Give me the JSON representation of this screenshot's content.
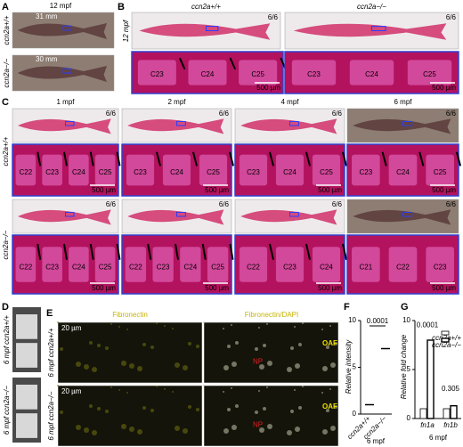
{
  "A": {
    "label": "A",
    "title": "12 mpf",
    "genotypes": [
      "ccn2a+/+",
      "ccn2a−/−"
    ],
    "lengths": [
      "31 mm",
      "30 mm"
    ]
  },
  "B": {
    "label": "B",
    "stage": "12 mpf",
    "columns": [
      {
        "genotype": "ccn2a+/+",
        "count": "6/6",
        "vertebrae": [
          "C23",
          "C24",
          "C25"
        ],
        "scale": "500 µm"
      },
      {
        "genotype": "ccn2a−/−",
        "count": "6/6",
        "vertebrae": [
          "C23",
          "C24",
          "C25"
        ],
        "scale": "500 µm"
      }
    ]
  },
  "C": {
    "label": "C",
    "genotypes": [
      "ccn2a+/+",
      "ccn2a−/−"
    ],
    "stages": [
      {
        "stage": "1 mpf",
        "rows": [
          {
            "count": "6/6",
            "vertebrae": [
              "C22",
              "C23",
              "C24",
              "C25"
            ],
            "scale": "500 µm"
          },
          {
            "count": "6/6",
            "vertebrae": [
              "C22",
              "C23",
              "C24",
              "C25"
            ],
            "scale": "500 µm"
          }
        ]
      },
      {
        "stage": "2 mpf",
        "rows": [
          {
            "count": "6/6",
            "vertebrae": [
              "C23",
              "C24",
              "C25"
            ],
            "scale": "500 µm"
          },
          {
            "count": "6/6",
            "vertebrae": [
              "C22",
              "C23",
              "C24",
              "C25"
            ],
            "scale": "500 µm"
          }
        ]
      },
      {
        "stage": "4 mpf",
        "rows": [
          {
            "count": "6/6",
            "vertebrae": [
              "C23",
              "C24",
              "C25"
            ],
            "scale": "500 µm"
          },
          {
            "count": "6/6",
            "vertebrae": [
              "C22",
              "C23",
              "C24"
            ],
            "scale": "500 µm"
          }
        ]
      },
      {
        "stage": "6 mpf",
        "rows": [
          {
            "count": "6/6",
            "vertebrae": [
              "C23",
              "C24",
              "C25"
            ],
            "scale": "500 µm"
          },
          {
            "count": "6/6",
            "vertebrae": [
              "C21",
              "C22",
              "C23"
            ],
            "scale": "500 µm"
          }
        ]
      }
    ]
  },
  "D": {
    "label": "D",
    "rows": [
      "6 mpf ccn2a+/+",
      "6 mpf ccn2a−/−"
    ]
  },
  "E": {
    "label": "E",
    "columns": [
      "Fibronectin",
      "Fibronectin/DAPI"
    ],
    "rows": [
      "6 mpf ccn2a+/+",
      "6 mpf ccn2a−/−"
    ],
    "scale": "20 µm",
    "tags": [
      "NP",
      "OAF"
    ]
  },
  "F": {
    "type": "scatter",
    "label": "F",
    "y_label": "Relative intensity",
    "x_label": "6 mpf",
    "categories": [
      "ccn2a+/+",
      "ccn2a−/−"
    ],
    "values": [
      1,
      7
    ],
    "p_value": "0.0001",
    "ylim": [
      0,
      10
    ],
    "yticks": [
      0,
      5,
      10
    ]
  },
  "G": {
    "type": "bar",
    "label": "G",
    "y_label": "Relative fold change",
    "x_label": "6 mpf",
    "categories": [
      "fn1a",
      "fn1b"
    ],
    "series": [
      {
        "name": "ccn2a+/+",
        "color": "#ffffff",
        "values": [
          1,
          1
        ]
      },
      {
        "name": "ccn2a−/−",
        "color": "#ffffff",
        "values": [
          8,
          1.3
        ]
      }
    ],
    "p_values": [
      "0.0001",
      "0.305"
    ],
    "ylim": [
      0,
      10
    ],
    "yticks": [
      0,
      5,
      10
    ]
  }
}
